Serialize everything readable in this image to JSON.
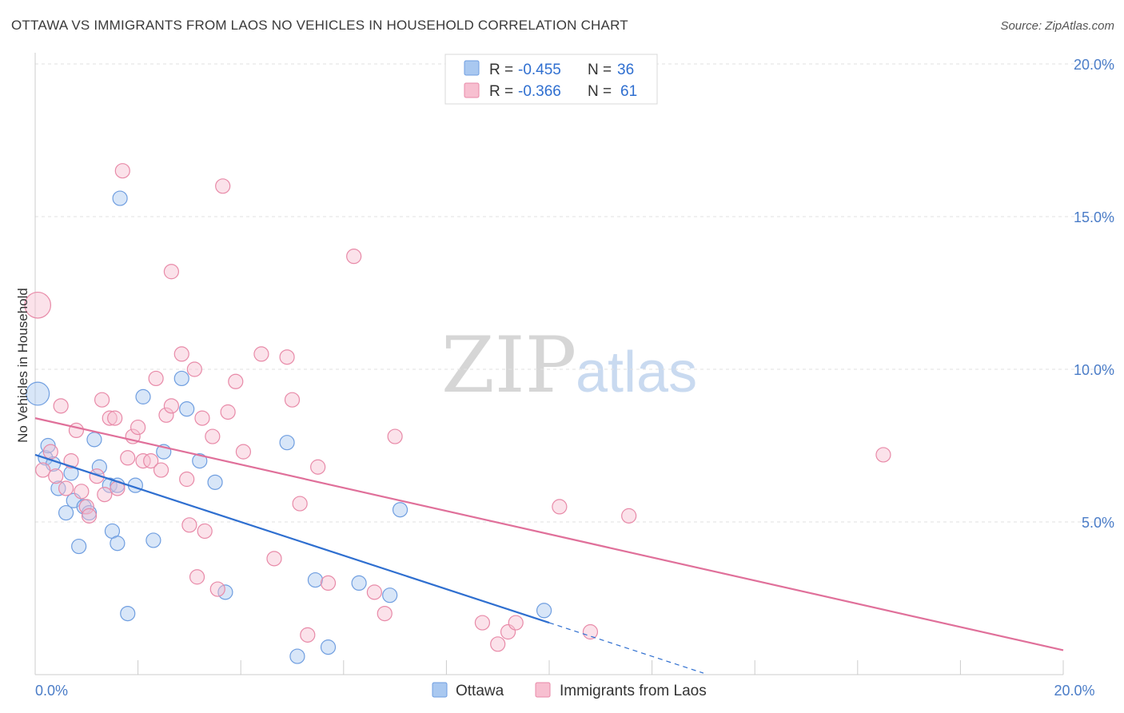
{
  "title": "OTTAWA VS IMMIGRANTS FROM LAOS NO VEHICLES IN HOUSEHOLD CORRELATION CHART",
  "source": "Source: ZipAtlas.com",
  "watermark": {
    "zip": "ZIP",
    "atlas": "atlas"
  },
  "chart_data": {
    "type": "scatter",
    "xlabel": "",
    "ylabel": "No Vehicles in Household",
    "xlim": [
      0,
      20
    ],
    "ylim": [
      0,
      20
    ],
    "x_ticks": [
      {
        "value": 0,
        "label": "0.0%"
      },
      {
        "value": 20,
        "label": "20.0%"
      }
    ],
    "y_ticks": [
      {
        "value": 5,
        "label": "5.0%"
      },
      {
        "value": 10,
        "label": "10.0%"
      },
      {
        "value": 15,
        "label": "15.0%"
      },
      {
        "value": 20,
        "label": "20.0%"
      }
    ],
    "grid": true,
    "legend_position": "top-center",
    "legend": [
      {
        "r_label": "R = ",
        "r_value": "-0.455",
        "n_label": "N = ",
        "n_value": "36",
        "color": "#a9c8f0",
        "stroke": "#6f9ee0"
      },
      {
        "r_label": "R = ",
        "r_value": "-0.366",
        "n_label": "N = ",
        "n_value": "61",
        "color": "#f7bfd0",
        "stroke": "#e88aa8"
      }
    ],
    "series": [
      {
        "name": "Ottawa",
        "color": "#a9c8f0",
        "stroke": "#6f9ee0",
        "trend_color": "#2f6fd0",
        "trend": {
          "x0": 0,
          "y0": 7.2,
          "x1": 10,
          "y1": 1.7,
          "dash_to_x": 13
        },
        "points": [
          [
            0.05,
            9.2,
            1.6
          ],
          [
            0.2,
            7.1,
            1
          ],
          [
            0.25,
            7.5,
            1
          ],
          [
            0.35,
            6.9,
            1
          ],
          [
            0.45,
            6.1,
            1
          ],
          [
            0.6,
            5.3,
            1
          ],
          [
            0.7,
            6.6,
            1
          ],
          [
            0.75,
            5.7,
            1
          ],
          [
            0.85,
            4.2,
            1
          ],
          [
            0.95,
            5.5,
            1
          ],
          [
            1.05,
            5.3,
            1
          ],
          [
            1.15,
            7.7,
            1
          ],
          [
            1.25,
            6.8,
            1
          ],
          [
            1.45,
            6.2,
            1
          ],
          [
            1.5,
            4.7,
            1
          ],
          [
            1.6,
            4.3,
            1
          ],
          [
            1.6,
            6.2,
            1
          ],
          [
            1.65,
            15.6,
            1
          ],
          [
            1.8,
            2.0,
            1
          ],
          [
            1.95,
            6.2,
            1
          ],
          [
            2.1,
            9.1,
            1
          ],
          [
            2.3,
            4.4,
            1
          ],
          [
            2.5,
            7.3,
            1
          ],
          [
            2.85,
            9.7,
            1
          ],
          [
            2.95,
            8.7,
            1
          ],
          [
            3.2,
            7.0,
            1
          ],
          [
            3.5,
            6.3,
            1
          ],
          [
            3.7,
            2.7,
            1
          ],
          [
            4.9,
            7.6,
            1
          ],
          [
            5.1,
            0.6,
            1
          ],
          [
            5.45,
            3.1,
            1
          ],
          [
            5.7,
            0.9,
            1
          ],
          [
            6.3,
            3.0,
            1
          ],
          [
            6.9,
            2.6,
            1
          ],
          [
            7.1,
            5.4,
            1
          ],
          [
            9.9,
            2.1,
            1
          ]
        ]
      },
      {
        "name": "Immigrants from Laos",
        "color": "#f7bfd0",
        "stroke": "#e88aa8",
        "trend_color": "#e0709a",
        "trend": {
          "x0": 0,
          "y0": 8.4,
          "x1": 20,
          "y1": 0.8
        },
        "points": [
          [
            0.05,
            12.1,
            1.8
          ],
          [
            0.15,
            6.7,
            1
          ],
          [
            0.3,
            7.3,
            1
          ],
          [
            0.4,
            6.5,
            1
          ],
          [
            0.5,
            8.8,
            1
          ],
          [
            0.6,
            6.1,
            1
          ],
          [
            0.7,
            7.0,
            1
          ],
          [
            0.8,
            8.0,
            1
          ],
          [
            0.9,
            6.0,
            1
          ],
          [
            1.0,
            5.5,
            1
          ],
          [
            1.05,
            5.2,
            1
          ],
          [
            1.2,
            6.5,
            1
          ],
          [
            1.3,
            9.0,
            1
          ],
          [
            1.35,
            5.9,
            1
          ],
          [
            1.45,
            8.4,
            1
          ],
          [
            1.55,
            8.4,
            1
          ],
          [
            1.6,
            6.1,
            1
          ],
          [
            1.7,
            16.5,
            1
          ],
          [
            1.8,
            7.1,
            1
          ],
          [
            1.9,
            7.8,
            1
          ],
          [
            2.0,
            8.1,
            1
          ],
          [
            2.1,
            7.0,
            1
          ],
          [
            2.25,
            7.0,
            1
          ],
          [
            2.35,
            9.7,
            1
          ],
          [
            2.45,
            6.7,
            1
          ],
          [
            2.55,
            8.5,
            1
          ],
          [
            2.65,
            8.8,
            1
          ],
          [
            2.65,
            13.2,
            1
          ],
          [
            2.85,
            10.5,
            1
          ],
          [
            2.95,
            6.4,
            1
          ],
          [
            3.0,
            4.9,
            1
          ],
          [
            3.1,
            10.0,
            1
          ],
          [
            3.15,
            3.2,
            1
          ],
          [
            3.25,
            8.4,
            1
          ],
          [
            3.3,
            4.7,
            1
          ],
          [
            3.45,
            7.8,
            1
          ],
          [
            3.55,
            2.8,
            1
          ],
          [
            3.65,
            16.0,
            1
          ],
          [
            3.75,
            8.6,
            1
          ],
          [
            3.9,
            9.6,
            1
          ],
          [
            4.05,
            7.3,
            1
          ],
          [
            4.4,
            10.5,
            1
          ],
          [
            4.65,
            3.8,
            1
          ],
          [
            4.9,
            10.4,
            1
          ],
          [
            5.0,
            9.0,
            1
          ],
          [
            5.15,
            5.6,
            1
          ],
          [
            5.3,
            1.3,
            1
          ],
          [
            5.5,
            6.8,
            1
          ],
          [
            5.7,
            3.0,
            1
          ],
          [
            6.2,
            13.7,
            1
          ],
          [
            6.6,
            2.7,
            1
          ],
          [
            6.8,
            2.0,
            1
          ],
          [
            7.0,
            7.8,
            1
          ],
          [
            8.7,
            1.7,
            1
          ],
          [
            9.0,
            1.0,
            1
          ],
          [
            9.2,
            1.4,
            1
          ],
          [
            9.35,
            1.7,
            1
          ],
          [
            10.2,
            5.5,
            1
          ],
          [
            10.8,
            1.4,
            1
          ],
          [
            11.55,
            5.2,
            1
          ],
          [
            16.5,
            7.2,
            1
          ]
        ]
      }
    ]
  }
}
